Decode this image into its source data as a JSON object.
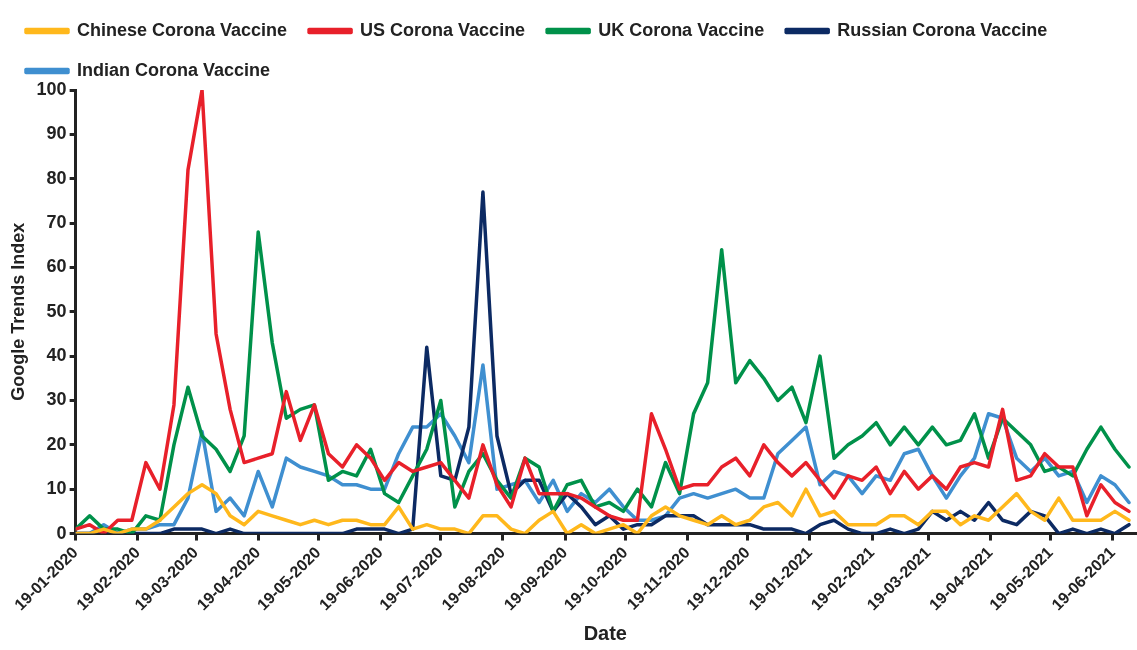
{
  "chart_data": {
    "type": "line",
    "xlabel": "Date",
    "ylabel": "Google Trends Index",
    "x": [
      "2020-01-19",
      "2020-01-26",
      "2020-02-02",
      "2020-02-09",
      "2020-02-16",
      "2020-02-23",
      "2020-03-01",
      "2020-03-08",
      "2020-03-15",
      "2020-03-22",
      "2020-03-29",
      "2020-04-05",
      "2020-04-12",
      "2020-04-19",
      "2020-04-26",
      "2020-05-03",
      "2020-05-10",
      "2020-05-17",
      "2020-05-24",
      "2020-05-31",
      "2020-06-07",
      "2020-06-14",
      "2020-06-21",
      "2020-06-28",
      "2020-07-05",
      "2020-07-12",
      "2020-07-19",
      "2020-07-26",
      "2020-08-02",
      "2020-08-09",
      "2020-08-16",
      "2020-08-23",
      "2020-08-30",
      "2020-09-06",
      "2020-09-13",
      "2020-09-20",
      "2020-09-27",
      "2020-10-04",
      "2020-10-11",
      "2020-10-18",
      "2020-10-25",
      "2020-11-01",
      "2020-11-08",
      "2020-11-15",
      "2020-11-22",
      "2020-11-29",
      "2020-12-06",
      "2020-12-13",
      "2020-12-20",
      "2020-12-27",
      "2021-01-03",
      "2021-01-10",
      "2021-01-17",
      "2021-01-24",
      "2021-01-31",
      "2021-02-07",
      "2021-02-14",
      "2021-02-21",
      "2021-02-28",
      "2021-03-07",
      "2021-03-14",
      "2021-03-21",
      "2021-03-28",
      "2021-04-04",
      "2021-04-11",
      "2021-04-18",
      "2021-04-25",
      "2021-05-02",
      "2021-05-09",
      "2021-05-16",
      "2021-05-23",
      "2021-05-30",
      "2021-06-06",
      "2021-06-13",
      "2021-06-20",
      "2021-06-27"
    ],
    "series": [
      {
        "name": "Chinese Corona Vaccine",
        "color": "#ffb81c",
        "values": [
          0,
          0,
          1,
          0,
          1,
          1,
          3,
          6,
          9,
          11,
          9,
          4,
          2,
          5,
          4,
          3,
          2,
          3,
          2,
          3,
          3,
          2,
          2,
          6,
          1,
          2,
          1,
          1,
          0,
          4,
          4,
          1,
          0,
          3,
          5,
          0,
          2,
          0,
          1,
          2,
          0,
          4,
          6,
          4,
          3,
          2,
          4,
          2,
          3,
          6,
          7,
          4,
          10,
          4,
          5,
          2,
          2,
          2,
          4,
          4,
          2,
          5,
          5,
          2,
          4,
          3,
          6,
          9,
          5,
          3,
          8,
          3,
          3,
          3,
          5,
          3
        ]
      },
      {
        "name": "US Corona Vaccine",
        "color": "#e8202a",
        "values": [
          1,
          2,
          0,
          3,
          3,
          16,
          10,
          29,
          82,
          100,
          45,
          28,
          16,
          17,
          18,
          32,
          21,
          29,
          18,
          15,
          20,
          17,
          12,
          16,
          14,
          15,
          16,
          12,
          8,
          20,
          11,
          6,
          17,
          9,
          9,
          9,
          8,
          6,
          4,
          3,
          3,
          27,
          19,
          10,
          11,
          11,
          15,
          17,
          13,
          20,
          16,
          13,
          16,
          12,
          8,
          13,
          12,
          15,
          9,
          14,
          10,
          13,
          10,
          15,
          16,
          15,
          28,
          12,
          13,
          18,
          15,
          15,
          4,
          11,
          7,
          5
        ]
      },
      {
        "name": "UK Corona Vaccine",
        "color": "#00914a",
        "values": [
          1,
          4,
          1,
          1,
          0,
          4,
          3,
          20,
          33,
          22,
          19,
          14,
          22,
          68,
          43,
          26,
          28,
          29,
          12,
          14,
          13,
          19,
          9,
          7,
          13,
          19,
          30,
          6,
          14,
          18,
          12,
          8,
          17,
          15,
          5,
          11,
          12,
          6,
          7,
          5,
          10,
          6,
          16,
          9,
          27,
          34,
          64,
          34,
          39,
          35,
          30,
          33,
          25,
          40,
          17,
          20,
          22,
          25,
          20,
          24,
          20,
          24,
          20,
          21,
          27,
          17,
          26,
          23,
          20,
          14,
          15,
          13,
          19,
          24,
          19,
          15
        ]
      },
      {
        "name": "Russian Corona Vaccine",
        "color": "#0c2a63",
        "values": [
          0,
          0,
          0,
          0,
          0,
          0,
          0,
          1,
          1,
          1,
          0,
          1,
          0,
          0,
          0,
          0,
          0,
          0,
          0,
          0,
          1,
          1,
          1,
          0,
          1,
          42,
          13,
          12,
          24,
          77,
          22,
          9,
          12,
          12,
          5,
          9,
          6,
          2,
          4,
          1,
          2,
          2,
          4,
          4,
          4,
          2,
          2,
          2,
          2,
          1,
          1,
          1,
          0,
          2,
          3,
          1,
          0,
          0,
          1,
          0,
          1,
          5,
          3,
          5,
          3,
          7,
          3,
          2,
          5,
          4,
          0,
          1,
          0,
          1,
          0,
          2
        ]
      },
      {
        "name": "Indian Corona Vaccine",
        "color": "#3f8fd0",
        "values": [
          0,
          0,
          2,
          0,
          1,
          1,
          2,
          2,
          8,
          23,
          5,
          8,
          4,
          14,
          6,
          17,
          15,
          14,
          13,
          11,
          11,
          10,
          10,
          18,
          24,
          24,
          27,
          22,
          16,
          38,
          10,
          11,
          12,
          7,
          12,
          5,
          9,
          7,
          10,
          6,
          3,
          3,
          4,
          8,
          9,
          8,
          9,
          10,
          8,
          8,
          18,
          21,
          24,
          11,
          14,
          13,
          9,
          13,
          12,
          18,
          19,
          13,
          8,
          13,
          17,
          27,
          26,
          17,
          14,
          17,
          13,
          14,
          7,
          13,
          11,
          7
        ]
      }
    ],
    "xlim": [
      "2020-01-19",
      "2021-06-30"
    ],
    "xticks": [
      {
        "value": "2020-01-19",
        "label": "19-01-2020"
      },
      {
        "value": "2020-02-19",
        "label": "19-02-2020"
      },
      {
        "value": "2020-03-19",
        "label": "19-03-2020"
      },
      {
        "value": "2020-04-19",
        "label": "19-04-2020"
      },
      {
        "value": "2020-05-19",
        "label": "19-05-2020"
      },
      {
        "value": "2020-06-19",
        "label": "19-06-2020"
      },
      {
        "value": "2020-07-19",
        "label": "19-07-2020"
      },
      {
        "value": "2020-08-19",
        "label": "19-08-2020"
      },
      {
        "value": "2020-09-19",
        "label": "19-09-2020"
      },
      {
        "value": "2020-10-19",
        "label": "19-10-2020"
      },
      {
        "value": "2020-11-19",
        "label": "19-11-2020"
      },
      {
        "value": "2020-12-19",
        "label": "19-12-2020"
      },
      {
        "value": "2021-01-19",
        "label": "19-01-2021"
      },
      {
        "value": "2021-02-19",
        "label": "19-02-2021"
      },
      {
        "value": "2021-03-19",
        "label": "19-03-2021"
      },
      {
        "value": "2021-04-19",
        "label": "19-04-2021"
      },
      {
        "value": "2021-05-19",
        "label": "19-05-2021"
      },
      {
        "value": "2021-06-19",
        "label": "19-06-2021"
      }
    ],
    "ylim": [
      0,
      100
    ],
    "yticks": [
      0,
      10,
      20,
      30,
      40,
      50,
      60,
      70,
      80,
      90,
      100
    ],
    "grid": false,
    "legend": "top",
    "marker": "none",
    "line_style": "solid"
  }
}
